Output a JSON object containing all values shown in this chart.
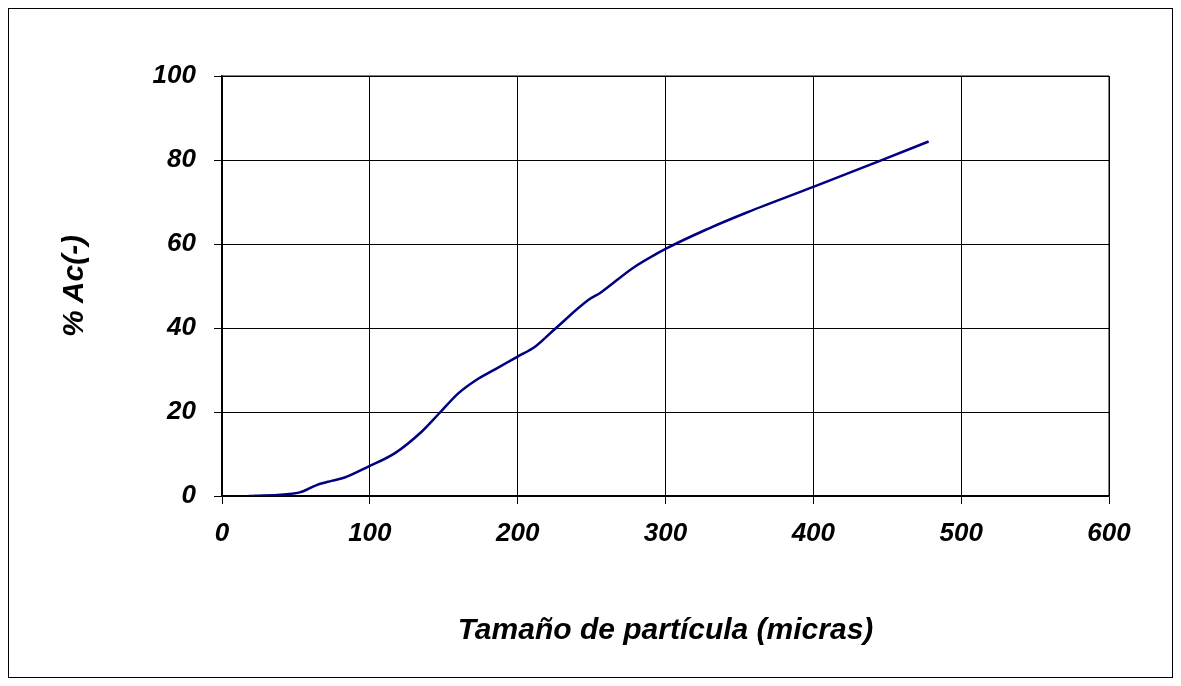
{
  "chart_data": {
    "type": "line",
    "xlabel": "Tamaño de partícula (micras)",
    "ylabel": "% Ac(-)",
    "xlim": [
      0,
      600
    ],
    "xticks": [
      0,
      100,
      200,
      300,
      400,
      500,
      600
    ],
    "ylim": [
      0,
      100
    ],
    "yticks": [
      0,
      20,
      40,
      60,
      80,
      100
    ],
    "grid": true,
    "legend": false,
    "marker": "none",
    "line_style": "solid",
    "series": [
      {
        "color": "#000080",
        "x": [
          18,
          52,
          64,
          74,
          83,
          99,
          117,
          135,
          147,
          160,
          171,
          185,
          200,
          212,
          225,
          248,
          256,
          278,
          301,
          328,
          355,
          400,
          445,
          478
        ],
        "values": [
          0,
          0.8,
          2.6,
          3.6,
          4.4,
          7.0,
          10.2,
          15.3,
          19.7,
          24.5,
          27.4,
          30.2,
          33.2,
          35.6,
          39.7,
          46.7,
          48.4,
          54.3,
          59.0,
          63.5,
          67.5,
          73.6,
          79.8,
          84.4
        ]
      }
    ]
  }
}
